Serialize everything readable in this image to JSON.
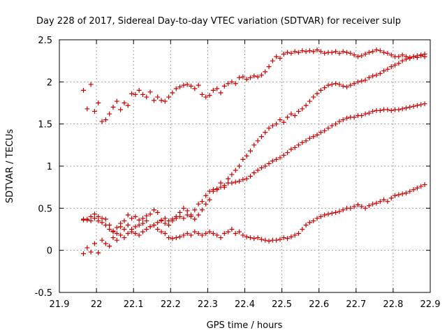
{
  "chart_data": {
    "type": "scatter",
    "title": "Day 228 of 2017, Sidereal Day-to-day VTEC variation (SDTVAR) for receiver sulp",
    "xlabel": "GPS time / hours",
    "ylabel": "SDTVAR / TECUs",
    "xlim": [
      21.9,
      22.9
    ],
    "ylim": [
      -0.5,
      2.5
    ],
    "xticks": [
      "21.9",
      "22",
      "22.1",
      "22.2",
      "22.3",
      "22.4",
      "22.5",
      "22.6",
      "22.7",
      "22.8",
      "22.9"
    ],
    "yticks": [
      "-0.5",
      "0",
      "0.5",
      "1",
      "1.5",
      "2",
      "2.5"
    ],
    "grid": true,
    "marker": "+",
    "color": "#cc0000",
    "series": [
      {
        "name": "series-1",
        "x": [
          21.965,
          21.975,
          21.985,
          21.995,
          22.005,
          22.015,
          22.025,
          22.035,
          22.045,
          22.055,
          22.065,
          22.075,
          22.085,
          22.095,
          22.105,
          22.115,
          22.125,
          22.135,
          22.145,
          22.155,
          22.165,
          22.175,
          22.185,
          22.195,
          22.205,
          22.215,
          22.225,
          22.235,
          22.245,
          22.255,
          22.265,
          22.275,
          22.285,
          22.295,
          22.305,
          22.315,
          22.325,
          22.335,
          22.345,
          22.355,
          22.365,
          22.375,
          22.385,
          22.395,
          22.405,
          22.415,
          22.425,
          22.435,
          22.445,
          22.455,
          22.465,
          22.475,
          22.485,
          22.495,
          22.505,
          22.515,
          22.525,
          22.535,
          22.545,
          22.555,
          22.565,
          22.575,
          22.585,
          22.595,
          22.605,
          22.615,
          22.625,
          22.635,
          22.645,
          22.655,
          22.665,
          22.675,
          22.685,
          22.695,
          22.705,
          22.715,
          22.725,
          22.735,
          22.745,
          22.755,
          22.765,
          22.775,
          22.785,
          22.795,
          22.805,
          22.815,
          22.825,
          22.835,
          22.845,
          22.855,
          22.865,
          22.875,
          22.885
        ],
        "y": [
          1.9,
          1.68,
          1.97,
          1.65,
          1.75,
          1.53,
          1.55,
          1.62,
          1.7,
          1.77,
          1.67,
          1.75,
          1.72,
          1.86,
          1.85,
          1.9,
          1.85,
          1.82,
          1.88,
          1.78,
          1.82,
          1.78,
          1.77,
          1.82,
          1.87,
          1.92,
          1.94,
          1.96,
          1.97,
          1.95,
          1.92,
          1.96,
          1.85,
          1.82,
          1.84,
          1.9,
          1.92,
          1.87,
          1.95,
          1.98,
          2.0,
          1.98,
          2.05,
          2.06,
          2.03,
          2.05,
          2.07,
          2.06,
          2.08,
          2.12,
          2.18,
          2.25,
          2.3,
          2.28,
          2.33,
          2.35,
          2.34,
          2.36,
          2.35,
          2.37,
          2.36,
          2.37,
          2.36,
          2.38,
          2.36,
          2.34,
          2.35,
          2.35,
          2.36,
          2.34,
          2.36,
          2.35,
          2.34,
          2.32,
          2.3,
          2.31,
          2.33,
          2.35,
          2.36,
          2.38,
          2.37,
          2.35,
          2.34,
          2.32,
          2.3,
          2.3,
          2.32,
          2.3,
          2.29,
          2.3,
          2.29,
          2.31,
          2.3
        ]
      },
      {
        "name": "series-2",
        "x": [
          21.965,
          21.975,
          21.985,
          21.995,
          22.005,
          22.015,
          22.025,
          22.035,
          22.045,
          22.055,
          22.065,
          22.075,
          22.085,
          22.095,
          22.105,
          22.115,
          22.125,
          22.135,
          22.145,
          22.155,
          22.165,
          22.175,
          22.185,
          22.195,
          22.205,
          22.215,
          22.225,
          22.235,
          22.245,
          22.255,
          22.265,
          22.275,
          22.285,
          22.295,
          22.305,
          22.315,
          22.325,
          22.335,
          22.345,
          22.355,
          22.365,
          22.375,
          22.385,
          22.395,
          22.405,
          22.415,
          22.425,
          22.435,
          22.445,
          22.455,
          22.465,
          22.475,
          22.485,
          22.495,
          22.505,
          22.515,
          22.525,
          22.535,
          22.545,
          22.555,
          22.565,
          22.575,
          22.585,
          22.595,
          22.605,
          22.615,
          22.625,
          22.635,
          22.645,
          22.655,
          22.665,
          22.675,
          22.685,
          22.695,
          22.705,
          22.715,
          22.725,
          22.735,
          22.745,
          22.755,
          22.765,
          22.775,
          22.785,
          22.795,
          22.805,
          22.815,
          22.825,
          22.835,
          22.845,
          22.855,
          22.865,
          22.875,
          22.885
        ],
        "y": [
          0.37,
          0.36,
          0.35,
          0.43,
          0.4,
          0.38,
          0.37,
          0.3,
          0.22,
          0.2,
          0.28,
          0.35,
          0.42,
          0.38,
          0.4,
          0.36,
          0.38,
          0.41,
          0.43,
          0.48,
          0.45,
          0.35,
          0.32,
          0.3,
          0.35,
          0.38,
          0.4,
          0.38,
          0.42,
          0.4,
          0.37,
          0.42,
          0.48,
          0.55,
          0.6,
          0.7,
          0.72,
          0.8,
          0.75,
          0.85,
          0.9,
          0.95,
          1.0,
          1.08,
          1.12,
          1.18,
          1.25,
          1.3,
          1.35,
          1.4,
          1.45,
          1.48,
          1.5,
          1.55,
          1.52,
          1.58,
          1.62,
          1.6,
          1.65,
          1.68,
          1.72,
          1.77,
          1.82,
          1.86,
          1.9,
          1.93,
          1.96,
          1.97,
          1.98,
          1.97,
          1.95,
          1.94,
          1.96,
          1.98,
          2.0,
          2.01,
          2.02,
          2.05,
          2.07,
          2.08,
          2.1,
          2.13,
          2.15,
          2.18,
          2.2,
          2.22,
          2.25,
          2.27,
          2.28,
          2.3,
          2.31,
          2.32,
          2.33
        ]
      },
      {
        "name": "series-3",
        "x": [
          21.965,
          21.975,
          21.985,
          21.995,
          22.005,
          22.015,
          22.025,
          22.035,
          22.045,
          22.055,
          22.065,
          22.075,
          22.085,
          22.095,
          22.105,
          22.115,
          22.125,
          22.135,
          22.145,
          22.155,
          22.165,
          22.175,
          22.185,
          22.195,
          22.205,
          22.215,
          22.225,
          22.235,
          22.245,
          22.255,
          22.265,
          22.275,
          22.285,
          22.295,
          22.305,
          22.315,
          22.325,
          22.335,
          22.345,
          22.355,
          22.365,
          22.375,
          22.385,
          22.395,
          22.405,
          22.415,
          22.425,
          22.435,
          22.445,
          22.455,
          22.465,
          22.475,
          22.485,
          22.495,
          22.505,
          22.515,
          22.525,
          22.535,
          22.545,
          22.555,
          22.565,
          22.575,
          22.585,
          22.595,
          22.605,
          22.615,
          22.625,
          22.635,
          22.645,
          22.655,
          22.665,
          22.675,
          22.685,
          22.695,
          22.705,
          22.715,
          22.725,
          22.735,
          22.745,
          22.755,
          22.765,
          22.775,
          22.785,
          22.795,
          22.805,
          22.815,
          22.825,
          22.835,
          22.845,
          22.855,
          22.865,
          22.875,
          22.885
        ],
        "y": [
          0.36,
          0.37,
          0.4,
          0.38,
          0.35,
          0.33,
          0.3,
          0.25,
          0.23,
          0.27,
          0.32,
          0.25,
          0.3,
          0.22,
          0.28,
          0.3,
          0.32,
          0.35,
          0.28,
          0.3,
          0.33,
          0.36,
          0.38,
          0.35,
          0.37,
          0.4,
          0.45,
          0.5,
          0.47,
          0.42,
          0.48,
          0.55,
          0.58,
          0.65,
          0.7,
          0.72,
          0.73,
          0.75,
          0.77,
          0.8,
          0.8,
          0.81,
          0.82,
          0.84,
          0.85,
          0.88,
          0.92,
          0.95,
          0.98,
          1.0,
          1.03,
          1.06,
          1.08,
          1.1,
          1.13,
          1.16,
          1.2,
          1.22,
          1.25,
          1.28,
          1.3,
          1.33,
          1.35,
          1.37,
          1.4,
          1.42,
          1.45,
          1.48,
          1.5,
          1.53,
          1.55,
          1.57,
          1.58,
          1.58,
          1.6,
          1.6,
          1.62,
          1.63,
          1.65,
          1.66,
          1.66,
          1.67,
          1.67,
          1.66,
          1.67,
          1.67,
          1.68,
          1.69,
          1.7,
          1.71,
          1.72,
          1.73,
          1.74
        ]
      },
      {
        "name": "series-4",
        "x": [
          21.965,
          21.975,
          21.985,
          21.995,
          22.005,
          22.015,
          22.025,
          22.035,
          22.045,
          22.055,
          22.065,
          22.075,
          22.085,
          22.095,
          22.105,
          22.115,
          22.125,
          22.135,
          22.145,
          22.155,
          22.165,
          22.175,
          22.185,
          22.195,
          22.205,
          22.215,
          22.225,
          22.235,
          22.245,
          22.255,
          22.265,
          22.275,
          22.285,
          22.295,
          22.305,
          22.315,
          22.325,
          22.335,
          22.345,
          22.355,
          22.365,
          22.375,
          22.385,
          22.395,
          22.405,
          22.415,
          22.425,
          22.435,
          22.445,
          22.455,
          22.465,
          22.475,
          22.485,
          22.495,
          22.505,
          22.515,
          22.525,
          22.535,
          22.545,
          22.555,
          22.565,
          22.575,
          22.585,
          22.595,
          22.605,
          22.615,
          22.625,
          22.635,
          22.645,
          22.655,
          22.665,
          22.675,
          22.685,
          22.695,
          22.705,
          22.715,
          22.725,
          22.735,
          22.745,
          22.755,
          22.765,
          22.775,
          22.785,
          22.795,
          22.805,
          22.815,
          22.825,
          22.835,
          22.845,
          22.855,
          22.865,
          22.875,
          22.885
        ],
        "y": [
          -0.04,
          0.03,
          -0.02,
          0.08,
          -0.03,
          0.12,
          0.08,
          0.05,
          0.15,
          0.12,
          0.18,
          0.15,
          0.2,
          0.25,
          0.2,
          0.18,
          0.22,
          0.25,
          0.28,
          0.3,
          0.25,
          0.22,
          0.2,
          0.15,
          0.14,
          0.15,
          0.16,
          0.18,
          0.2,
          0.18,
          0.22,
          0.2,
          0.18,
          0.2,
          0.22,
          0.2,
          0.18,
          0.15,
          0.2,
          0.22,
          0.25,
          0.2,
          0.22,
          0.18,
          0.16,
          0.15,
          0.14,
          0.15,
          0.13,
          0.12,
          0.11,
          0.12,
          0.12,
          0.13,
          0.15,
          0.14,
          0.16,
          0.18,
          0.2,
          0.25,
          0.3,
          0.33,
          0.35,
          0.38,
          0.4,
          0.42,
          0.43,
          0.44,
          0.45,
          0.46,
          0.48,
          0.5,
          0.5,
          0.52,
          0.54,
          0.52,
          0.5,
          0.53,
          0.55,
          0.56,
          0.58,
          0.6,
          0.58,
          0.62,
          0.65,
          0.66,
          0.67,
          0.68,
          0.7,
          0.72,
          0.74,
          0.76,
          0.78
        ]
      }
    ]
  }
}
